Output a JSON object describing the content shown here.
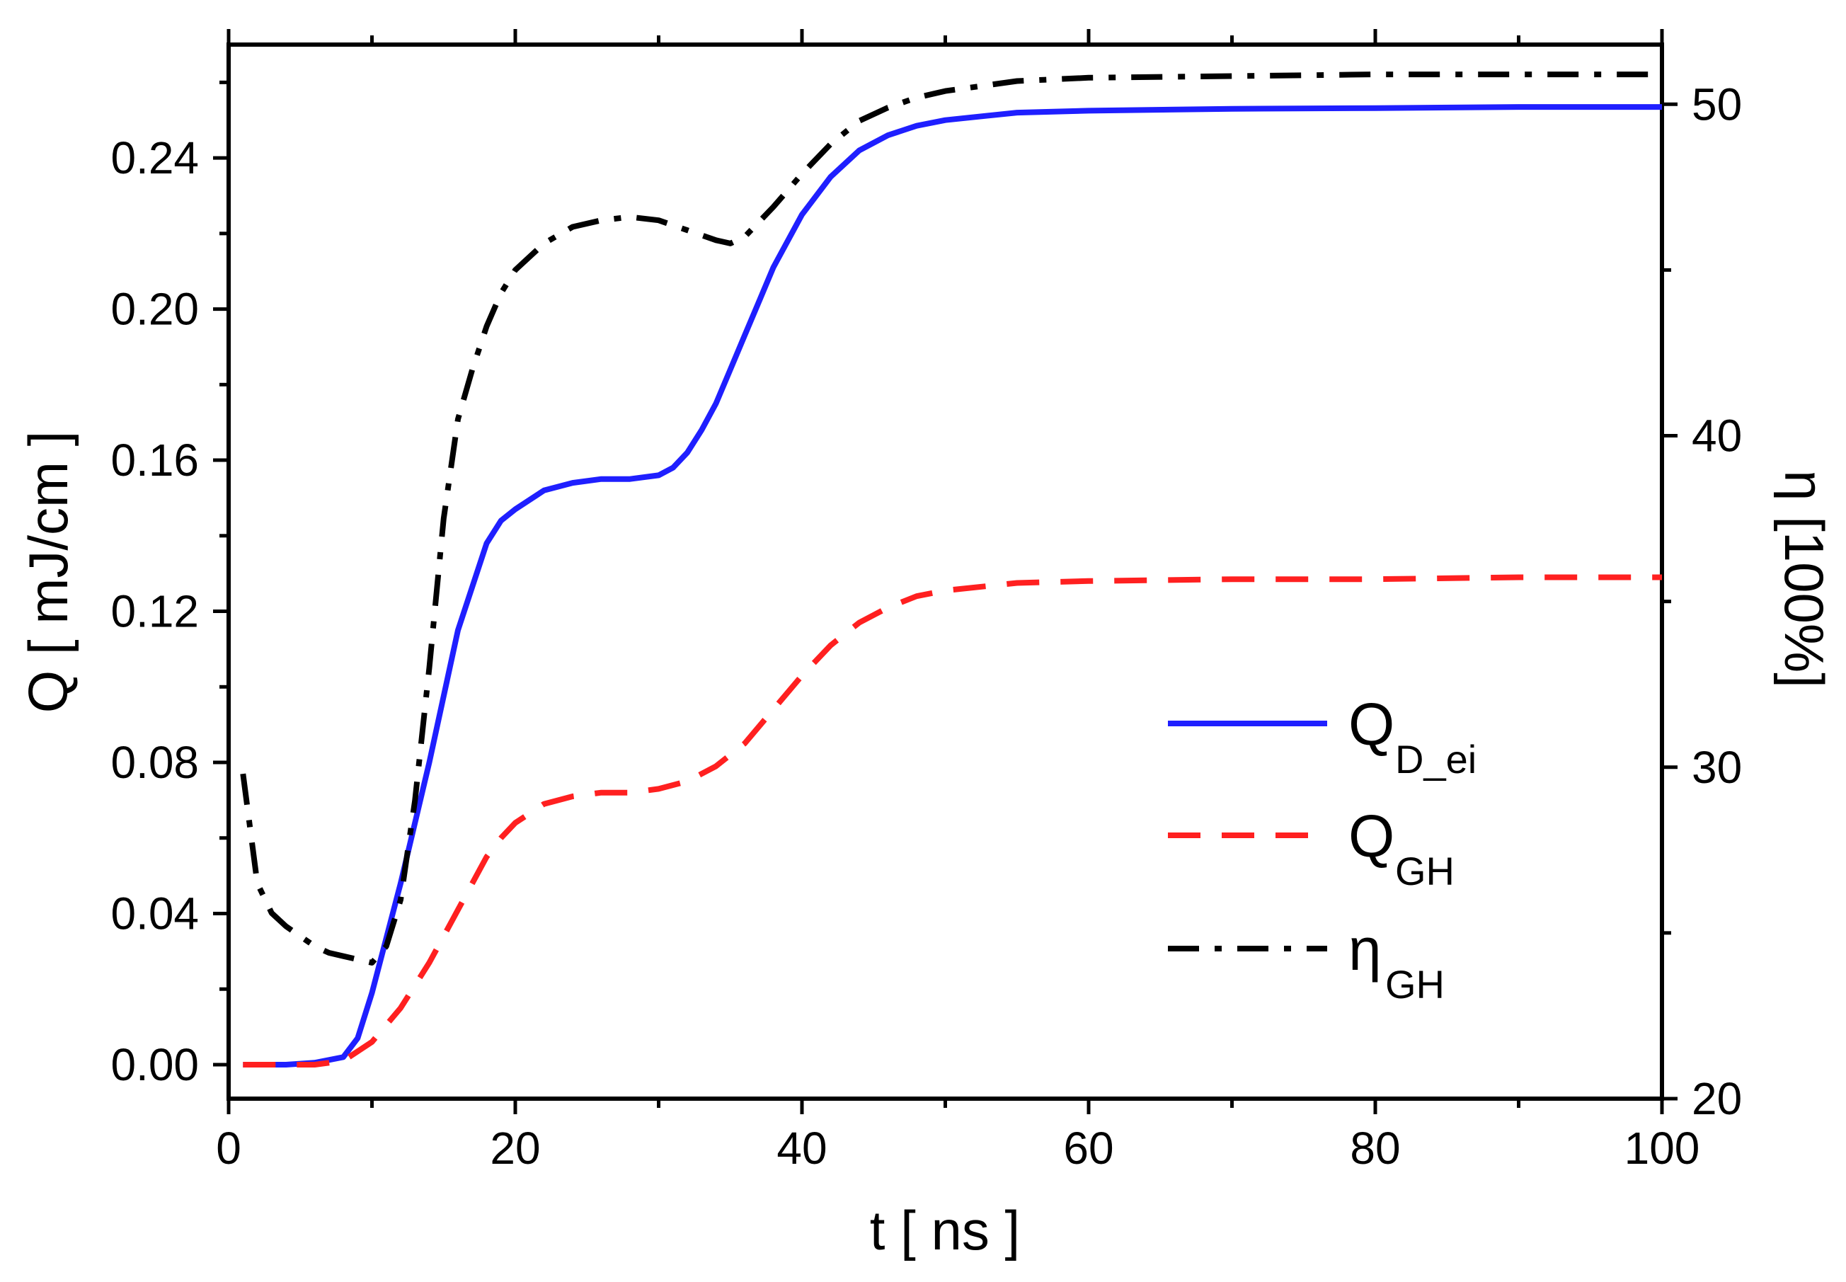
{
  "chart_data": {
    "type": "line",
    "x_axis": {
      "label": "t [ ns ]",
      "lim": [
        0,
        100
      ],
      "ticks": [
        0,
        20,
        40,
        60,
        80,
        100
      ]
    },
    "y_left": {
      "label": "Q [ mJ/cm ]",
      "lim": [
        -0.009,
        0.27
      ],
      "ticks": [
        0.0,
        0.04,
        0.08,
        0.12,
        0.16,
        0.2,
        0.24
      ],
      "tick_labels": [
        "0.00",
        "0.04",
        "0.08",
        "0.12",
        "0.16",
        "0.20",
        "0.24"
      ]
    },
    "y_right": {
      "label": "η [100%]",
      "lim": [
        20,
        51.8
      ],
      "ticks": [
        20,
        30,
        40,
        50
      ],
      "tick_labels": [
        "20",
        "30",
        "40",
        "50"
      ]
    },
    "grid": false,
    "legend_position": "lower-right",
    "series": [
      {
        "name": "Q_D_ei",
        "legend_main": "Q",
        "legend_sub": "D_ei",
        "axis": "left",
        "color": "#1f1fff",
        "style": "solid",
        "x": [
          1,
          4,
          6,
          8,
          9,
          10,
          12,
          14,
          16,
          18,
          19,
          20,
          22,
          24,
          26,
          28,
          30,
          31,
          32,
          33,
          34,
          35,
          36,
          37,
          38,
          40,
          42,
          44,
          46,
          48,
          50,
          55,
          60,
          70,
          80,
          90,
          100
        ],
        "y": [
          0.0,
          0.0,
          0.0005,
          0.002,
          0.007,
          0.019,
          0.048,
          0.08,
          0.115,
          0.138,
          0.144,
          0.147,
          0.152,
          0.154,
          0.155,
          0.155,
          0.156,
          0.158,
          0.162,
          0.168,
          0.175,
          0.184,
          0.193,
          0.202,
          0.211,
          0.225,
          0.235,
          0.242,
          0.246,
          0.2485,
          0.25,
          0.252,
          0.2525,
          0.253,
          0.2532,
          0.2535,
          0.2535
        ]
      },
      {
        "name": "Q_GH",
        "legend_main": "Q",
        "legend_sub": "GH",
        "axis": "left",
        "color": "#ff2020",
        "style": "dashed",
        "x": [
          1,
          4,
          6,
          8,
          10,
          12,
          14,
          16,
          18,
          19,
          20,
          22,
          24,
          26,
          28,
          30,
          32,
          34,
          36,
          38,
          40,
          42,
          44,
          46,
          48,
          50,
          55,
          60,
          70,
          80,
          90,
          100
        ],
        "y": [
          0.0,
          0.0,
          0.0,
          0.001,
          0.006,
          0.015,
          0.027,
          0.041,
          0.055,
          0.06,
          0.064,
          0.069,
          0.071,
          0.072,
          0.072,
          0.073,
          0.075,
          0.079,
          0.085,
          0.094,
          0.103,
          0.111,
          0.117,
          0.121,
          0.124,
          0.1255,
          0.1275,
          0.128,
          0.1285,
          0.1285,
          0.129,
          0.129
        ]
      },
      {
        "name": "η_GH",
        "legend_main": "η",
        "legend_sub": "GH",
        "axis": "right",
        "color": "#000000",
        "style": "dashdot",
        "x": [
          1,
          2,
          3,
          4,
          5,
          6,
          7,
          8,
          9,
          10,
          11,
          12,
          13,
          14,
          15,
          16,
          17,
          18,
          19,
          20,
          22,
          24,
          26,
          28,
          30,
          32,
          34,
          35,
          36,
          38,
          40,
          42,
          44,
          46,
          48,
          50,
          55,
          60,
          70,
          80,
          90,
          100
        ],
        "y": [
          29.8,
          26.5,
          25.6,
          25.2,
          24.9,
          24.6,
          24.4,
          24.3,
          24.2,
          24.1,
          24.6,
          26.0,
          29.0,
          33.0,
          37.5,
          40.5,
          42.0,
          43.3,
          44.3,
          45.0,
          45.8,
          46.3,
          46.5,
          46.6,
          46.5,
          46.2,
          45.9,
          45.8,
          46.0,
          46.9,
          47.9,
          48.8,
          49.5,
          49.9,
          50.2,
          50.4,
          50.7,
          50.8,
          50.85,
          50.9,
          50.9,
          50.9
        ]
      }
    ]
  }
}
